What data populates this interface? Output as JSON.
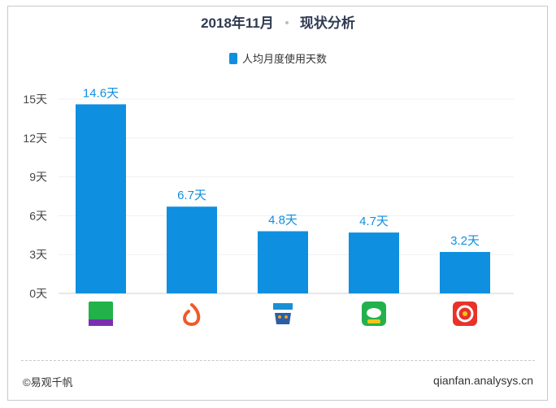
{
  "header": {
    "title_date": "2018年11月",
    "title_text": "现状分析"
  },
  "chart_data": {
    "type": "bar",
    "categories": [
      "每日优鲜",
      "叮咚买菜",
      "盒马",
      "京东到家",
      "多点"
    ],
    "series": [
      {
        "name": "人均月度使用天数",
        "values": [
          14.6,
          6.7,
          4.8,
          4.7,
          3.2
        ],
        "labels": [
          "14.6天",
          "6.7天",
          "4.8天",
          "4.7天",
          "3.2天"
        ]
      }
    ],
    "yticks": [
      0,
      3,
      6,
      9,
      12,
      15
    ],
    "ytick_labels": [
      "0天",
      "3天",
      "6天",
      "9天",
      "12天",
      "15天"
    ],
    "ylim": [
      0,
      15
    ],
    "grid": true,
    "legend_position": "top-center",
    "bar_color": "#0e8fe0",
    "label_color": "#0e8fe0"
  },
  "footer": {
    "source": "©易观千帆",
    "site": "qianfan.analysys.cn"
  }
}
